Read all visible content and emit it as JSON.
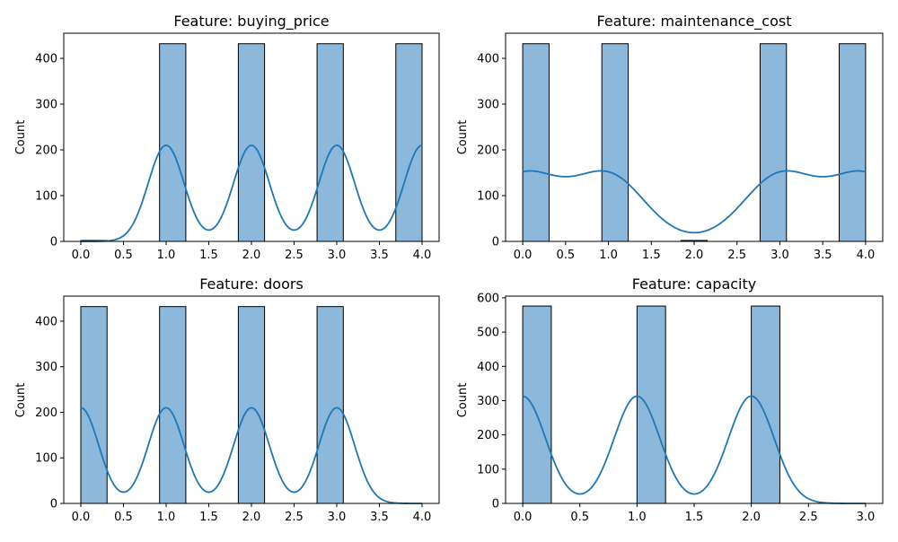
{
  "chart_data": [
    {
      "type": "histogram",
      "title": "Feature: buying_price",
      "xlabel": "",
      "ylabel": "Count",
      "xlim": [
        -0.2,
        4.2
      ],
      "ylim": [
        0,
        455
      ],
      "xticks": [
        "0.0",
        "0.5",
        "1.0",
        "1.5",
        "2.0",
        "2.5",
        "3.0",
        "3.5",
        "4.0"
      ],
      "yticks": [
        "0",
        "100",
        "200",
        "300",
        "400"
      ],
      "bin_width": 0.3077,
      "bins": [
        {
          "x0": 0.0,
          "x1": 0.3077,
          "count": 2
        },
        {
          "x0": 0.9231,
          "x1": 1.2308,
          "count": 432
        },
        {
          "x0": 1.8462,
          "x1": 2.1538,
          "count": 432
        },
        {
          "x0": 2.7692,
          "x1": 3.0769,
          "count": 432
        },
        {
          "x0": 3.6923,
          "x1": 4.0,
          "count": 432
        }
      ],
      "kde": {
        "peaks": [
          1,
          2,
          3,
          4
        ],
        "peak_value": 210,
        "valleys": [
          1.5,
          2.5,
          3.5
        ],
        "valley_value": 60
      }
    },
    {
      "type": "histogram",
      "title": "Feature: maintenance_cost",
      "xlabel": "",
      "ylabel": "Count",
      "xlim": [
        -0.2,
        4.2
      ],
      "ylim": [
        0,
        455
      ],
      "xticks": [
        "0.0",
        "0.5",
        "1.0",
        "1.5",
        "2.0",
        "2.5",
        "3.0",
        "3.5",
        "4.0"
      ],
      "yticks": [
        "0",
        "100",
        "200",
        "300",
        "400"
      ],
      "bin_width": 0.3077,
      "bins": [
        {
          "x0": 0.0,
          "x1": 0.3077,
          "count": 432
        },
        {
          "x0": 0.9231,
          "x1": 1.2308,
          "count": 432
        },
        {
          "x0": 1.8462,
          "x1": 2.1538,
          "count": 2
        },
        {
          "x0": 2.7692,
          "x1": 3.0769,
          "count": 432
        },
        {
          "x0": 3.6923,
          "x1": 4.0,
          "count": 432
        }
      ],
      "kde": {
        "peaks": [
          0,
          1,
          3,
          4
        ],
        "peak_value": 152,
        "valleys": [
          0.5,
          3.5
        ],
        "valley_value": 112,
        "min_at": 2,
        "min_value": 8
      }
    },
    {
      "type": "histogram",
      "title": "Feature: doors",
      "xlabel": "",
      "ylabel": "Count",
      "xlim": [
        -0.2,
        4.2
      ],
      "ylim": [
        0,
        455
      ],
      "xticks": [
        "0.0",
        "0.5",
        "1.0",
        "1.5",
        "2.0",
        "2.5",
        "3.0",
        "3.5",
        "4.0"
      ],
      "yticks": [
        "0",
        "100",
        "200",
        "300",
        "400"
      ],
      "bin_width": 0.3077,
      "bins": [
        {
          "x0": 0.0,
          "x1": 0.3077,
          "count": 432
        },
        {
          "x0": 0.9231,
          "x1": 1.2308,
          "count": 432
        },
        {
          "x0": 1.8462,
          "x1": 2.1538,
          "count": 432
        },
        {
          "x0": 2.7692,
          "x1": 3.0769,
          "count": 432
        }
      ],
      "kde": {
        "peaks": [
          0,
          1,
          2,
          3
        ],
        "peak_value": 210,
        "valleys": [
          0.5,
          1.5,
          2.5
        ],
        "valley_value": 60
      }
    },
    {
      "type": "histogram",
      "title": "Feature: capacity",
      "xlabel": "",
      "ylabel": "Count",
      "xlim": [
        -0.15,
        3.15
      ],
      "ylim": [
        0,
        605
      ],
      "xticks": [
        "0.0",
        "0.5",
        "1.0",
        "1.5",
        "2.0",
        "2.5",
        "3.0"
      ],
      "yticks": [
        "0",
        "100",
        "200",
        "300",
        "400",
        "500",
        "600"
      ],
      "bin_width": 0.25,
      "bins": [
        {
          "x0": 0.0,
          "x1": 0.25,
          "count": 576
        },
        {
          "x0": 1.0,
          "x1": 1.25,
          "count": 576
        },
        {
          "x0": 2.0,
          "x1": 2.25,
          "count": 576
        }
      ],
      "kde": {
        "peaks": [
          0,
          1,
          2
        ],
        "peak_value": 313,
        "valleys": [
          0.5,
          1.5
        ],
        "valley_value": 18
      }
    }
  ],
  "colors": {
    "bar_fill": "#8cb8dc",
    "bar_edge": "#000000",
    "kde_line": "#1f77b4"
  }
}
